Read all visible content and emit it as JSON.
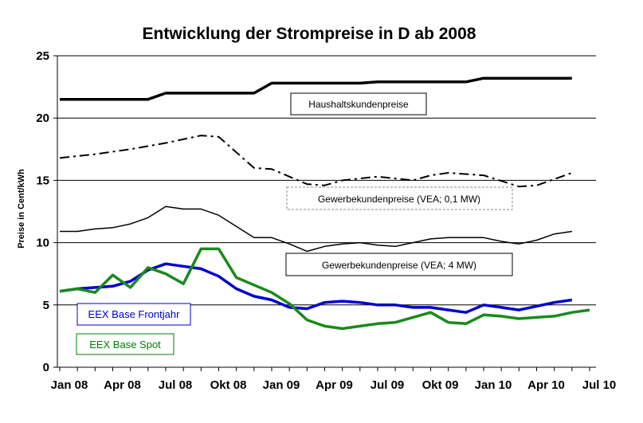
{
  "chart_data": {
    "type": "line",
    "title": "Entwicklung der Strompreise in D ab 2008",
    "xlabel": "",
    "ylabel": "Preise in Cent/kWh",
    "ylim": [
      0,
      25
    ],
    "yticks": [
      0,
      5,
      10,
      15,
      20,
      25
    ],
    "xticks": [
      "Jan 08",
      "Apr 08",
      "Jul 08",
      "Okt 08",
      "Jan 09",
      "Apr 09",
      "Jul 09",
      "Okt 09",
      "Jan 10",
      "Apr 10",
      "Jul 10"
    ],
    "x_range": [
      "2008-01",
      "2010-07"
    ],
    "grid": "horizontal",
    "series": [
      {
        "name": "Haushaltskundenpreise",
        "color": "#000000",
        "style": "solid-thick",
        "points": [
          [
            "2008-01",
            21.5
          ],
          [
            "2008-02",
            21.5
          ],
          [
            "2008-03",
            21.5
          ],
          [
            "2008-04",
            21.5
          ],
          [
            "2008-05",
            21.5
          ],
          [
            "2008-06",
            21.5
          ],
          [
            "2008-07",
            22.0
          ],
          [
            "2008-08",
            22.0
          ],
          [
            "2008-09",
            22.0
          ],
          [
            "2008-10",
            22.0
          ],
          [
            "2008-11",
            22.0
          ],
          [
            "2008-12",
            22.0
          ],
          [
            "2009-01",
            22.8
          ],
          [
            "2009-02",
            22.8
          ],
          [
            "2009-03",
            22.8
          ],
          [
            "2009-04",
            22.8
          ],
          [
            "2009-05",
            22.8
          ],
          [
            "2009-06",
            22.8
          ],
          [
            "2009-07",
            22.9
          ],
          [
            "2009-08",
            22.9
          ],
          [
            "2009-09",
            22.9
          ],
          [
            "2009-10",
            22.9
          ],
          [
            "2009-11",
            22.9
          ],
          [
            "2009-12",
            22.9
          ],
          [
            "2010-01",
            23.2
          ],
          [
            "2010-02",
            23.2
          ],
          [
            "2010-03",
            23.2
          ],
          [
            "2010-04",
            23.2
          ],
          [
            "2010-05",
            23.2
          ],
          [
            "2010-06",
            23.2
          ]
        ]
      },
      {
        "name": "Gewerbekundenpreise (VEA; 0,1 MW)",
        "color": "#000000",
        "style": "dash-dot",
        "points": [
          [
            "2008-01",
            16.8
          ],
          [
            "2008-03",
            17.1
          ],
          [
            "2008-05",
            17.5
          ],
          [
            "2008-07",
            18.0
          ],
          [
            "2008-09",
            18.6
          ],
          [
            "2008-10",
            18.5
          ],
          [
            "2008-12",
            16.0
          ],
          [
            "2009-01",
            15.9
          ],
          [
            "2009-03",
            14.7
          ],
          [
            "2009-04",
            14.6
          ],
          [
            "2009-05",
            15.0
          ],
          [
            "2009-07",
            15.3
          ],
          [
            "2009-09",
            15.0
          ],
          [
            "2009-10",
            15.4
          ],
          [
            "2009-11",
            15.6
          ],
          [
            "2010-01",
            15.4
          ],
          [
            "2010-03",
            14.5
          ],
          [
            "2010-04",
            14.6
          ],
          [
            "2010-06",
            15.6
          ]
        ]
      },
      {
        "name": "Gewerbekundenpreise (VEA; 4 MW)",
        "color": "#000000",
        "style": "solid-thin",
        "points": [
          [
            "2008-01",
            10.9
          ],
          [
            "2008-02",
            10.9
          ],
          [
            "2008-03",
            11.1
          ],
          [
            "2008-04",
            11.2
          ],
          [
            "2008-05",
            11.5
          ],
          [
            "2008-06",
            12.0
          ],
          [
            "2008-07",
            12.9
          ],
          [
            "2008-08",
            12.7
          ],
          [
            "2008-09",
            12.7
          ],
          [
            "2008-10",
            12.2
          ],
          [
            "2008-11",
            11.3
          ],
          [
            "2008-12",
            10.4
          ],
          [
            "2009-01",
            10.4
          ],
          [
            "2009-02",
            9.9
          ],
          [
            "2009-03",
            9.3
          ],
          [
            "2009-04",
            9.7
          ],
          [
            "2009-05",
            9.9
          ],
          [
            "2009-06",
            10.0
          ],
          [
            "2009-07",
            9.8
          ],
          [
            "2009-08",
            9.7
          ],
          [
            "2009-09",
            10.0
          ],
          [
            "2009-10",
            10.3
          ],
          [
            "2009-11",
            10.4
          ],
          [
            "2009-12",
            10.4
          ],
          [
            "2010-01",
            10.4
          ],
          [
            "2010-02",
            10.1
          ],
          [
            "2010-03",
            9.9
          ],
          [
            "2010-04",
            10.2
          ],
          [
            "2010-05",
            10.7
          ],
          [
            "2010-06",
            10.9
          ]
        ]
      },
      {
        "name": "EEX Base Frontjahr",
        "color": "#0000cc",
        "style": "solid-thick",
        "points": [
          [
            "2008-01",
            6.1
          ],
          [
            "2008-02",
            6.3
          ],
          [
            "2008-03",
            6.4
          ],
          [
            "2008-04",
            6.5
          ],
          [
            "2008-05",
            6.9
          ],
          [
            "2008-06",
            7.8
          ],
          [
            "2008-07",
            8.3
          ],
          [
            "2008-08",
            8.1
          ],
          [
            "2008-09",
            7.9
          ],
          [
            "2008-10",
            7.3
          ],
          [
            "2008-11",
            6.3
          ],
          [
            "2008-12",
            5.7
          ],
          [
            "2009-01",
            5.4
          ],
          [
            "2009-02",
            4.8
          ],
          [
            "2009-03",
            4.7
          ],
          [
            "2009-04",
            5.2
          ],
          [
            "2009-05",
            5.3
          ],
          [
            "2009-06",
            5.2
          ],
          [
            "2009-07",
            5.0
          ],
          [
            "2009-08",
            5.0
          ],
          [
            "2009-09",
            4.8
          ],
          [
            "2009-10",
            4.8
          ],
          [
            "2009-11",
            4.6
          ],
          [
            "2009-12",
            4.4
          ],
          [
            "2010-01",
            5.0
          ],
          [
            "2010-02",
            4.8
          ],
          [
            "2010-03",
            4.6
          ],
          [
            "2010-04",
            4.9
          ],
          [
            "2010-05",
            5.2
          ],
          [
            "2010-06",
            5.4
          ]
        ]
      },
      {
        "name": "EEX Base Spot",
        "color": "#1a8a1a",
        "style": "solid-thick",
        "points": [
          [
            "2008-01",
            6.1
          ],
          [
            "2008-02",
            6.3
          ],
          [
            "2008-03",
            6.0
          ],
          [
            "2008-04",
            7.4
          ],
          [
            "2008-05",
            6.4
          ],
          [
            "2008-06",
            8.0
          ],
          [
            "2008-07",
            7.5
          ],
          [
            "2008-08",
            6.7
          ],
          [
            "2008-09",
            9.5
          ],
          [
            "2008-10",
            9.5
          ],
          [
            "2008-11",
            7.2
          ],
          [
            "2008-12",
            6.6
          ],
          [
            "2009-01",
            6.0
          ],
          [
            "2009-02",
            5.1
          ],
          [
            "2009-03",
            3.8
          ],
          [
            "2009-04",
            3.3
          ],
          [
            "2009-05",
            3.1
          ],
          [
            "2009-06",
            3.3
          ],
          [
            "2009-07",
            3.5
          ],
          [
            "2009-08",
            3.6
          ],
          [
            "2009-09",
            4.0
          ],
          [
            "2009-10",
            4.4
          ],
          [
            "2009-11",
            3.6
          ],
          [
            "2009-12",
            3.5
          ],
          [
            "2010-01",
            4.2
          ],
          [
            "2010-02",
            4.1
          ],
          [
            "2010-03",
            3.9
          ],
          [
            "2010-04",
            4.0
          ],
          [
            "2010-05",
            4.1
          ],
          [
            "2010-06",
            4.4
          ],
          [
            "2010-07",
            4.6
          ]
        ]
      }
    ],
    "annotations": [
      "Haushaltskundenpreise",
      "Gewerbekundenpreise (VEA; 0,1 MW)",
      "Gewerbekundenpreise (VEA; 4 MW)",
      "EEX Base Frontjahr",
      "EEX Base Spot"
    ]
  }
}
